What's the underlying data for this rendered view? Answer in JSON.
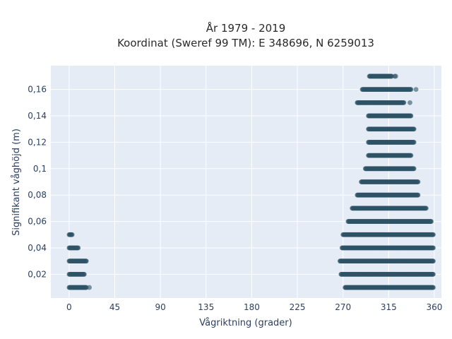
{
  "chart_data": {
    "type": "scatter",
    "title": "År 1979 - 2019",
    "subtitle": "Koordinat (Sweref 99 TM): E 348696, N 6259013",
    "xlabel": "Vågriktning (grader)",
    "ylabel": "Signifikant våghöjd (m)",
    "xlim": [
      -18,
      367
    ],
    "ylim": [
      0.002,
      0.178
    ],
    "x_ticks": [
      0,
      45,
      90,
      135,
      180,
      225,
      270,
      315,
      360
    ],
    "x_tick_labels": [
      "0",
      "45",
      "90",
      "135",
      "180",
      "225",
      "270",
      "315",
      "360"
    ],
    "y_ticks": [
      0.02,
      0.04,
      0.06,
      0.08,
      0.1,
      0.12,
      0.14,
      0.16
    ],
    "y_tick_labels": [
      "0,02",
      "0,04",
      "0,06",
      "0,08",
      "0,1",
      "0,12",
      "0,14",
      "0,16"
    ],
    "grid": true,
    "marker_color": "#2e5466",
    "point_bands": [
      {
        "y": 0.01,
        "x_min": 0,
        "x_max": 17
      },
      {
        "y": 0.02,
        "x_min": 0,
        "x_max": 15
      },
      {
        "y": 0.03,
        "x_min": 0,
        "x_max": 17
      },
      {
        "y": 0.04,
        "x_min": 0,
        "x_max": 9
      },
      {
        "y": 0.05,
        "x_min": 0,
        "x_max": 3
      },
      {
        "y": 0.01,
        "x_min": 272,
        "x_max": 359
      },
      {
        "y": 0.02,
        "x_min": 268,
        "x_max": 359
      },
      {
        "y": 0.03,
        "x_min": 267,
        "x_max": 359
      },
      {
        "y": 0.04,
        "x_min": 269,
        "x_max": 359
      },
      {
        "y": 0.05,
        "x_min": 270,
        "x_max": 359
      },
      {
        "y": 0.06,
        "x_min": 275,
        "x_max": 357
      },
      {
        "y": 0.07,
        "x_min": 279,
        "x_max": 352
      },
      {
        "y": 0.08,
        "x_min": 284,
        "x_max": 344
      },
      {
        "y": 0.09,
        "x_min": 288,
        "x_max": 344
      },
      {
        "y": 0.1,
        "x_min": 292,
        "x_max": 340
      },
      {
        "y": 0.11,
        "x_min": 295,
        "x_max": 337
      },
      {
        "y": 0.12,
        "x_min": 295,
        "x_max": 340
      },
      {
        "y": 0.13,
        "x_min": 295,
        "x_max": 340
      },
      {
        "y": 0.14,
        "x_min": 295,
        "x_max": 337
      },
      {
        "y": 0.15,
        "x_min": 284,
        "x_max": 330
      },
      {
        "y": 0.16,
        "x_min": 289,
        "x_max": 337
      },
      {
        "y": 0.17,
        "x_min": 296,
        "x_max": 318
      }
    ],
    "outliers": [
      {
        "x": 20,
        "y": 0.01
      },
      {
        "x": 342,
        "y": 0.16
      },
      {
        "x": 336,
        "y": 0.15
      },
      {
        "x": 322,
        "y": 0.17
      },
      {
        "x": 321,
        "y": 0.17
      }
    ]
  }
}
